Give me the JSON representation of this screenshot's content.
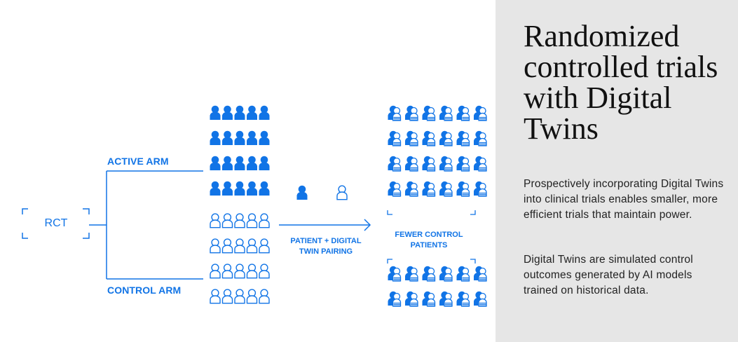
{
  "colors": {
    "accent": "#1174e6",
    "panel_bg": "#e6e6e6",
    "text": "#111111"
  },
  "diagram": {
    "rct_label": "RCT",
    "active_arm_label": "ACTIVE ARM",
    "control_arm_label": "CONTROL ARM",
    "pairing_label": "PATIENT + DIGITAL TWIN PAIRING",
    "fewer_control_label": "FEWER CONTROL PATIENTS",
    "icons": {
      "patient": "filled-person-icon",
      "control_patient": "outline-person-icon",
      "digital_twin_pair": "stacked-person-icon"
    }
  },
  "panel": {
    "title": "Randomized controlled trials with Digital Twins",
    "paragraph_1": "Prospectively incorporating Digital Twins into clinical trials enables smaller, more efficient trials that maintain power.",
    "paragraph_2": "Digital Twins are simulated control outcomes generated by AI models trained on historical data."
  }
}
